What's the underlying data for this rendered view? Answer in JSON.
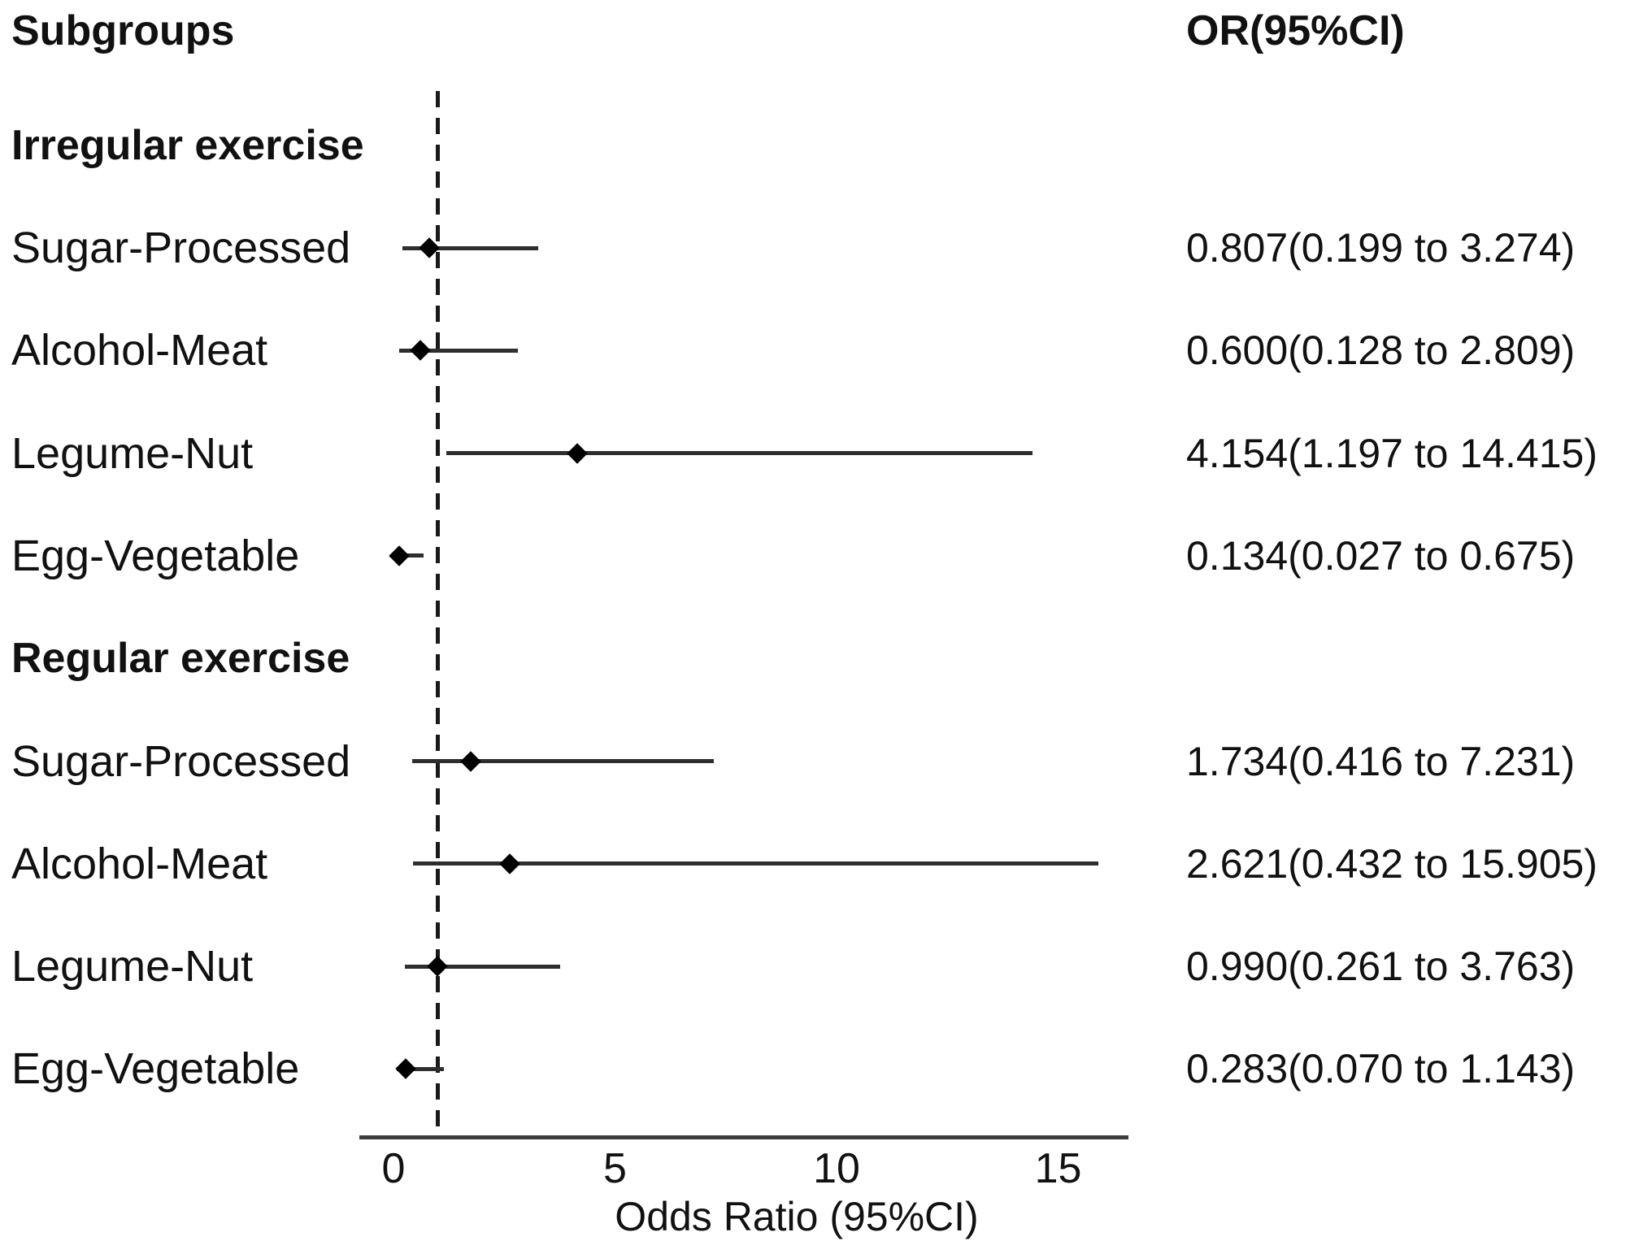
{
  "chart_data": {
    "type": "forest",
    "row_column_header": "Subgroups",
    "or_column_header": "OR(95%CI)",
    "xlabel": "Odds Ratio (95%CI)",
    "x_ticks": [
      0,
      5,
      10,
      15
    ],
    "x_range": [
      -0.75,
      16.6
    ],
    "reference_line_x": 1,
    "legend_position": "none",
    "grid": false,
    "groups": [
      {
        "label": "Irregular exercise",
        "rows": [
          {
            "label": "Sugar-Processed",
            "or": 0.807,
            "ci_low": 0.199,
            "ci_high": 3.274,
            "display": "0.807(0.199 to 3.274)"
          },
          {
            "label": "Alcohol-Meat",
            "or": 0.6,
            "ci_low": 0.128,
            "ci_high": 2.809,
            "display": "0.600(0.128 to 2.809)"
          },
          {
            "label": "Legume-Nut",
            "or": 4.154,
            "ci_low": 1.197,
            "ci_high": 14.415,
            "display": "4.154(1.197 to 14.415)"
          },
          {
            "label": "Egg-Vegetable",
            "or": 0.134,
            "ci_low": 0.027,
            "ci_high": 0.675,
            "display": "0.134(0.027 to 0.675)"
          }
        ]
      },
      {
        "label": "Regular exercise",
        "rows": [
          {
            "label": "Sugar-Processed",
            "or": 1.734,
            "ci_low": 0.416,
            "ci_high": 7.231,
            "display": "1.734(0.416 to 7.231)"
          },
          {
            "label": "Alcohol-Meat",
            "or": 2.621,
            "ci_low": 0.432,
            "ci_high": 15.905,
            "display": "2.621(0.432 to 15.905)"
          },
          {
            "label": "Legume-Nut",
            "or": 0.99,
            "ci_low": 0.261,
            "ci_high": 3.763,
            "display": "0.990(0.261 to 3.763)"
          },
          {
            "label": "Egg-Vegetable",
            "or": 0.283,
            "ci_low": 0.07,
            "ci_high": 1.143,
            "display": "0.283(0.070 to 1.143)"
          }
        ]
      }
    ],
    "colors": {
      "background": "#ffffff",
      "text": "#111111",
      "marker": "#000000",
      "ci_line": "#2e2e2e",
      "axis_line": "#3c3c3c",
      "reference_line": "#1a1a1a"
    }
  }
}
